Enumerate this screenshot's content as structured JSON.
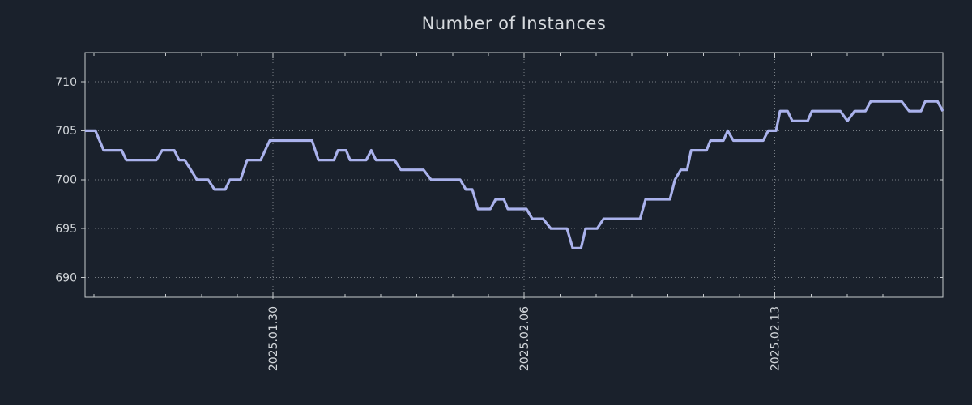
{
  "chart_data": {
    "type": "line",
    "title": "Number of Instances",
    "xlabel": "",
    "ylabel": "",
    "legend": "none",
    "grid": "dotted",
    "x_axis": {
      "tick_labels": [
        "2025.01.30",
        "2025.02.06",
        "2025.02.13"
      ],
      "tick_days": [
        5.24,
        12.24,
        19.23
      ],
      "minor_tick_start_day": 0.25,
      "minor_tick_interval_days": 1,
      "total_days": 23.92,
      "label_rotation_deg": -90
    },
    "y_axis": {
      "ticks": [
        690,
        695,
        700,
        705,
        710
      ],
      "range": [
        687.98,
        712.98
      ]
    },
    "series": [
      {
        "name": "instances",
        "points": [
          [
            0.0,
            705
          ],
          [
            0.29,
            705
          ],
          [
            0.52,
            703
          ],
          [
            1.02,
            703
          ],
          [
            1.15,
            702
          ],
          [
            1.99,
            702
          ],
          [
            2.15,
            703
          ],
          [
            2.49,
            703
          ],
          [
            2.62,
            702
          ],
          [
            2.78,
            702
          ],
          [
            3.12,
            700
          ],
          [
            3.43,
            700
          ],
          [
            3.61,
            699
          ],
          [
            3.91,
            699
          ],
          [
            4.04,
            700
          ],
          [
            4.34,
            700
          ],
          [
            4.52,
            702
          ],
          [
            4.9,
            702
          ],
          [
            5.15,
            704
          ],
          [
            6.33,
            704
          ],
          [
            6.51,
            702
          ],
          [
            6.94,
            702
          ],
          [
            7.05,
            703
          ],
          [
            7.28,
            703
          ],
          [
            7.39,
            702
          ],
          [
            7.84,
            702
          ],
          [
            7.98,
            703
          ],
          [
            8.11,
            702
          ],
          [
            8.63,
            702
          ],
          [
            8.81,
            701
          ],
          [
            9.44,
            701
          ],
          [
            9.65,
            700
          ],
          [
            10.46,
            700
          ],
          [
            10.62,
            699
          ],
          [
            10.8,
            699
          ],
          [
            10.96,
            697
          ],
          [
            11.3,
            697
          ],
          [
            11.45,
            698
          ],
          [
            11.68,
            698
          ],
          [
            11.79,
            697
          ],
          [
            12.31,
            697
          ],
          [
            12.47,
            696
          ],
          [
            12.77,
            696
          ],
          [
            12.99,
            695
          ],
          [
            13.44,
            695
          ],
          [
            13.6,
            693
          ],
          [
            13.83,
            693
          ],
          [
            13.96,
            695
          ],
          [
            14.28,
            695
          ],
          [
            14.46,
            696
          ],
          [
            15.48,
            696
          ],
          [
            15.63,
            698
          ],
          [
            16.31,
            698
          ],
          [
            16.45,
            700
          ],
          [
            16.61,
            701
          ],
          [
            16.79,
            701
          ],
          [
            16.9,
            703
          ],
          [
            17.33,
            703
          ],
          [
            17.44,
            704
          ],
          [
            17.8,
            704
          ],
          [
            17.92,
            705
          ],
          [
            18.08,
            704
          ],
          [
            18.91,
            704
          ],
          [
            19.05,
            705
          ],
          [
            19.27,
            705
          ],
          [
            19.38,
            707
          ],
          [
            19.59,
            707
          ],
          [
            19.72,
            706
          ],
          [
            20.15,
            706
          ],
          [
            20.27,
            707
          ],
          [
            21.06,
            707
          ],
          [
            21.26,
            706
          ],
          [
            21.46,
            707
          ],
          [
            21.76,
            707
          ],
          [
            21.91,
            708
          ],
          [
            22.77,
            708
          ],
          [
            22.98,
            707
          ],
          [
            23.31,
            707
          ],
          [
            23.43,
            708
          ],
          [
            23.77,
            708
          ],
          [
            23.92,
            707
          ]
        ]
      }
    ],
    "colors": {
      "background": "#1a212c",
      "line": "#aab2ec",
      "frame": "#c6cacd",
      "grid": "#b9bec3",
      "title_text": "#d6dade",
      "tick_text": "#d2d6da"
    }
  }
}
